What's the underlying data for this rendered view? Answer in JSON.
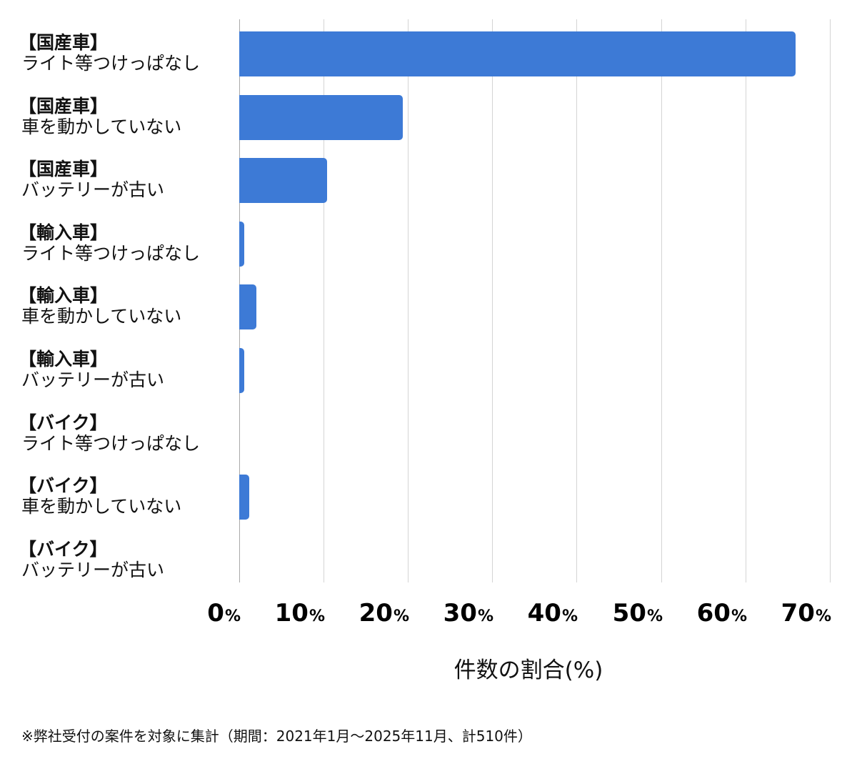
{
  "chart_data": {
    "type": "bar",
    "orientation": "horizontal",
    "categories": [
      [
        "【国産車】",
        "ライト等つけっぱなし"
      ],
      [
        "【国産車】",
        "車を動かしていない"
      ],
      [
        "【国産車】",
        "バッテリーが古い"
      ],
      [
        "【輸入車】",
        "ライト等つけっぱなし"
      ],
      [
        "【輸入車】",
        "車を動かしていない"
      ],
      [
        "【輸入車】",
        "バッテリーが古い"
      ],
      [
        "【バイク】",
        "ライト等つけっぱなし"
      ],
      [
        "【バイク】",
        "車を動かしていない"
      ],
      [
        "【バイク】",
        "バッテリーが古い"
      ]
    ],
    "values": [
      66.0,
      19.4,
      10.4,
      0.6,
      2.0,
      0.6,
      0.0,
      1.2,
      0.0
    ],
    "title": "",
    "xlabel": "件数の割合(%)",
    "ylabel": "",
    "xlim": [
      0,
      70
    ],
    "xticks": [
      {
        "value": 0,
        "num": "0",
        "unit": "%"
      },
      {
        "value": 10,
        "num": "10",
        "unit": "%"
      },
      {
        "value": 20,
        "num": "20",
        "unit": "%"
      },
      {
        "value": 30,
        "num": "30",
        "unit": "%"
      },
      {
        "value": 40,
        "num": "40",
        "unit": "%"
      },
      {
        "value": 50,
        "num": "50",
        "unit": "%"
      },
      {
        "value": 60,
        "num": "60",
        "unit": "%"
      },
      {
        "value": 70,
        "num": "70",
        "unit": "%"
      }
    ],
    "grid": true,
    "legend": null,
    "bar_color": "#3D7AD6"
  },
  "footnote": "※弊社受付の案件を対象に集計（期間：2021年1月～2025年11月、計510件）"
}
